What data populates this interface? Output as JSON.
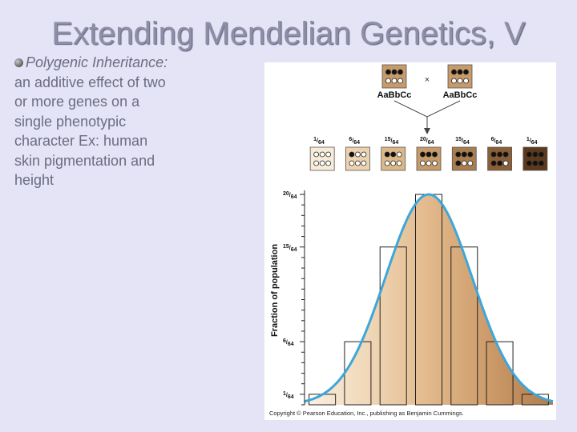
{
  "slide": {
    "title": "Extending Mendelian Genetics, V",
    "bullet_label": "Polygenic Inheritance:",
    "bullet_text": "an additive effect of two or more genes on a single phenotypic character Ex: human skin pigmentation and height"
  },
  "cross": {
    "parent1": "AaBbCc",
    "parent2": "AaBbCc",
    "symbol": "×",
    "parent_dark_alleles": 3,
    "allele_counts": [
      0,
      1,
      2,
      3,
      4,
      5,
      6
    ]
  },
  "chart_data": {
    "type": "bar",
    "title": "",
    "xlabel": "",
    "ylabel": "Fraction of population",
    "categories": [
      "1/64",
      "6/64",
      "15/64",
      "20/64",
      "15/64",
      "6/64",
      "1/64"
    ],
    "values": [
      1,
      6,
      15,
      20,
      15,
      6,
      1
    ],
    "denominator": 64,
    "ylim": [
      0,
      20
    ],
    "ytick_values": [
      1,
      6,
      15,
      20
    ],
    "ytick_labels": [
      "1/64",
      "6/64",
      "15/64",
      "20/64"
    ],
    "curve": "normal distribution overlay",
    "bar_colors": [
      "#f1dfc5",
      "#e6c79d",
      "#d9ad76",
      "#c98f58",
      "#b2763e",
      "#94592a",
      "#6e3f1a"
    ],
    "box_colors": [
      "#f8ecd8",
      "#ecd2ae",
      "#dcb888",
      "#c69a6b",
      "#aa7d50",
      "#8a5e36",
      "#5e3a1d"
    ]
  },
  "figure": {
    "copyright": "Copyright © Pearson Education, Inc., publishing as Benjamin Cummings."
  },
  "colors": {
    "background": "#e4e4f6",
    "title": "#8e8ea8",
    "curve": "#3ea6d9"
  }
}
